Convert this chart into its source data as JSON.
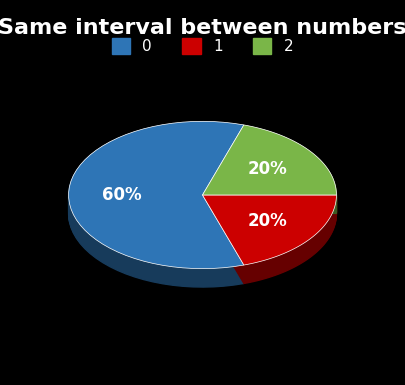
{
  "title": "Same interval between numbers",
  "background_color": "#000000",
  "text_color": "#ffffff",
  "slices": [
    60,
    20,
    20
  ],
  "labels": [
    "0",
    "1",
    "2"
  ],
  "colors": [
    "#2E75B6",
    "#CC0000",
    "#7AB648"
  ],
  "pct_labels": [
    "60%",
    "20%",
    "20%"
  ],
  "title_fontsize": 16,
  "legend_fontsize": 11,
  "startangle": 72
}
